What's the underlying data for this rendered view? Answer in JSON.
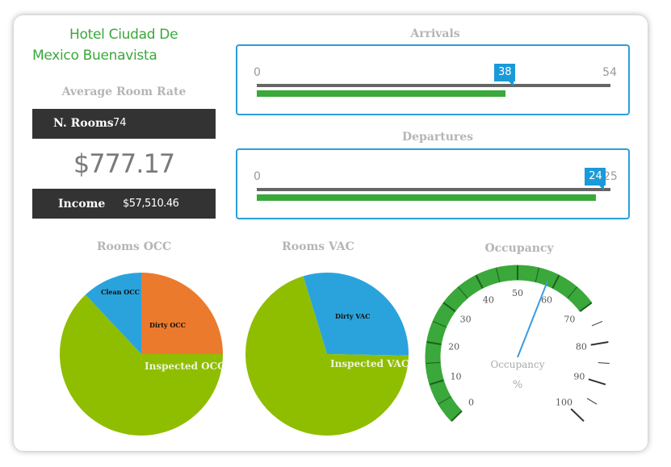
{
  "hotel": {
    "line1": "Hotel  Ciudad De",
    "line2": "Mexico Buenavista"
  },
  "average_room_rate": {
    "title": "Average Room Rate",
    "rooms_label": "N. Rooms",
    "rooms_value": "74",
    "rate": "$777.17",
    "income_label": "Income",
    "income_value": "$57,510.46"
  },
  "arrivals": {
    "title": "Arrivals",
    "min": "0",
    "max": "54",
    "value": "38",
    "value_num": 38,
    "max_num": 54
  },
  "departures": {
    "title": "Departures",
    "min": "0",
    "max": "25",
    "value": "24",
    "value_num": 24,
    "max_num": 25
  },
  "rooms_occ": {
    "title": "Rooms OCC",
    "slices": [
      {
        "label": "Dirty OCC",
        "value": 25,
        "color": "#ec7a2c"
      },
      {
        "label": "Inspected OCC",
        "value": 63,
        "color": "#8fbe00"
      },
      {
        "label": "Clean OCC",
        "value": 12,
        "color": "#2aa3dd"
      }
    ]
  },
  "rooms_vac": {
    "title": "Rooms VAC",
    "slices": [
      {
        "label": "Dirty VAC",
        "value": 30,
        "color": "#2aa3dd"
      },
      {
        "label": "Inspected VAC",
        "value": 70,
        "color": "#8fbe00"
      }
    ]
  },
  "occupancy": {
    "title": "Occupancy",
    "center_label": "Occupancy",
    "unit": "%",
    "value": 58,
    "ticks": [
      "0",
      "10",
      "20",
      "30",
      "40",
      "50",
      "60",
      "70",
      "80",
      "90",
      "100"
    ],
    "band_color": "#3aa83a"
  },
  "colors": {
    "accent_green": "#3aa83a",
    "accent_blue": "#2aa0d6",
    "dark": "#333333"
  }
}
